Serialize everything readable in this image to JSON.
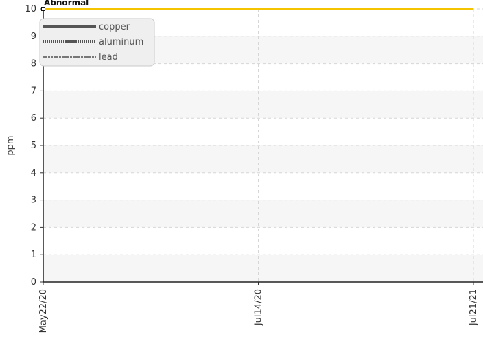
{
  "chart_data": {
    "type": "line",
    "title": "",
    "ylabel": "ppm",
    "xlabel": "",
    "ylim": [
      0,
      10
    ],
    "yticks": [
      0,
      1,
      2,
      3,
      4,
      5,
      6,
      7,
      8,
      9,
      10
    ],
    "x_ticks": [
      "May22/20",
      "Jul14/20",
      "Jul21/21"
    ],
    "grid": true,
    "legend_position": "top-left",
    "series": [
      {
        "name": "copper",
        "style": "solid",
        "color": "#555555",
        "values": []
      },
      {
        "name": "aluminum",
        "style": "dotted",
        "color": "#555555",
        "values": []
      },
      {
        "name": "lead",
        "style": "dashed",
        "color": "#777777",
        "values": []
      }
    ],
    "threshold": {
      "label": "Abnormal",
      "value": 10,
      "color": "#f5c400"
    }
  }
}
